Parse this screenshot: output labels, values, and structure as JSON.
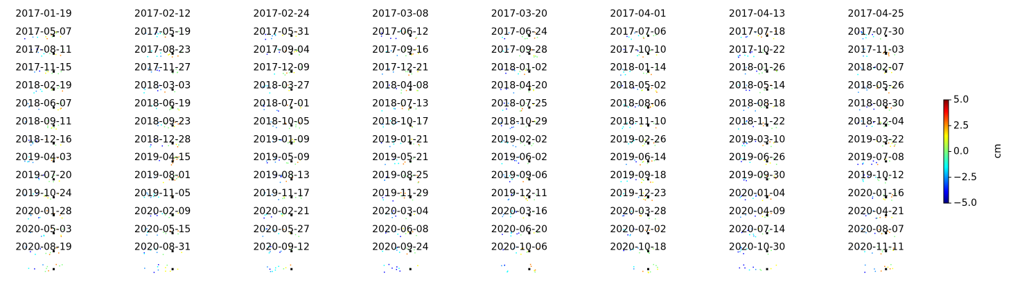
{
  "chart_data": {
    "type": "image-grid",
    "columns": 8,
    "panel_titles": [
      "2017-01-19",
      "2017-02-12",
      "2017-02-24",
      "2017-03-08",
      "2017-03-20",
      "2017-04-01",
      "2017-04-13",
      "2017-04-25",
      "2017-05-07",
      "2017-05-19",
      "2017-05-31",
      "2017-06-12",
      "2017-06-24",
      "2017-07-06",
      "2017-07-18",
      "2017-07-30",
      "2017-08-11",
      "2017-08-23",
      "2017-09-04",
      "2017-09-16",
      "2017-09-28",
      "2017-10-10",
      "2017-10-22",
      "2017-11-03",
      "2017-11-15",
      "2017-11-27",
      "2017-12-09",
      "2017-12-21",
      "2018-01-02",
      "2018-01-14",
      "2018-01-26",
      "2018-02-07",
      "2018-02-19",
      "2018-03-03",
      "2018-03-27",
      "2018-04-08",
      "2018-04-20",
      "2018-05-02",
      "2018-05-14",
      "2018-05-26",
      "2018-06-07",
      "2018-06-19",
      "2018-07-01",
      "2018-07-13",
      "2018-07-25",
      "2018-08-06",
      "2018-08-18",
      "2018-08-30",
      "2018-09-11",
      "2018-09-23",
      "2018-10-05",
      "2018-10-17",
      "2018-10-29",
      "2018-11-10",
      "2018-11-22",
      "2018-12-04",
      "2018-12-16",
      "2018-12-28",
      "2019-01-09",
      "2019-01-21",
      "2019-02-02",
      "2019-02-26",
      "2019-03-10",
      "2019-03-22",
      "2019-04-03",
      "2019-04-15",
      "2019-05-09",
      "2019-05-21",
      "2019-06-02",
      "2019-06-14",
      "2019-06-26",
      "2019-07-08",
      "2019-07-20",
      "2019-08-01",
      "2019-08-13",
      "2019-08-25",
      "2019-09-06",
      "2019-09-18",
      "2019-09-30",
      "2019-10-12",
      "2019-10-24",
      "2019-11-05",
      "2019-11-17",
      "2019-11-29",
      "2019-12-11",
      "2019-12-23",
      "2020-01-04",
      "2020-01-16",
      "2020-01-28",
      "2020-02-09",
      "2020-02-21",
      "2020-03-04",
      "2020-03-16",
      "2020-03-28",
      "2020-04-09",
      "2020-04-21",
      "2020-05-03",
      "2020-05-15",
      "2020-05-27",
      "2020-06-08",
      "2020-06-20",
      "2020-07-02",
      "2020-07-14",
      "2020-08-07",
      "2020-08-19",
      "2020-08-31",
      "2020-09-12",
      "2020-09-24",
      "2020-10-06",
      "2020-10-18",
      "2020-10-30",
      "2020-11-11"
    ],
    "colorbar": {
      "label": "cm",
      "lim": [
        -5,
        5
      ],
      "ticks": [
        {
          "value": 5,
          "label": "5.0"
        },
        {
          "value": 2.5,
          "label": "2.5"
        },
        {
          "value": 0,
          "label": "0.0"
        },
        {
          "value": -2.5,
          "label": "−2.5"
        },
        {
          "value": -5,
          "label": "−5.0"
        }
      ]
    }
  }
}
